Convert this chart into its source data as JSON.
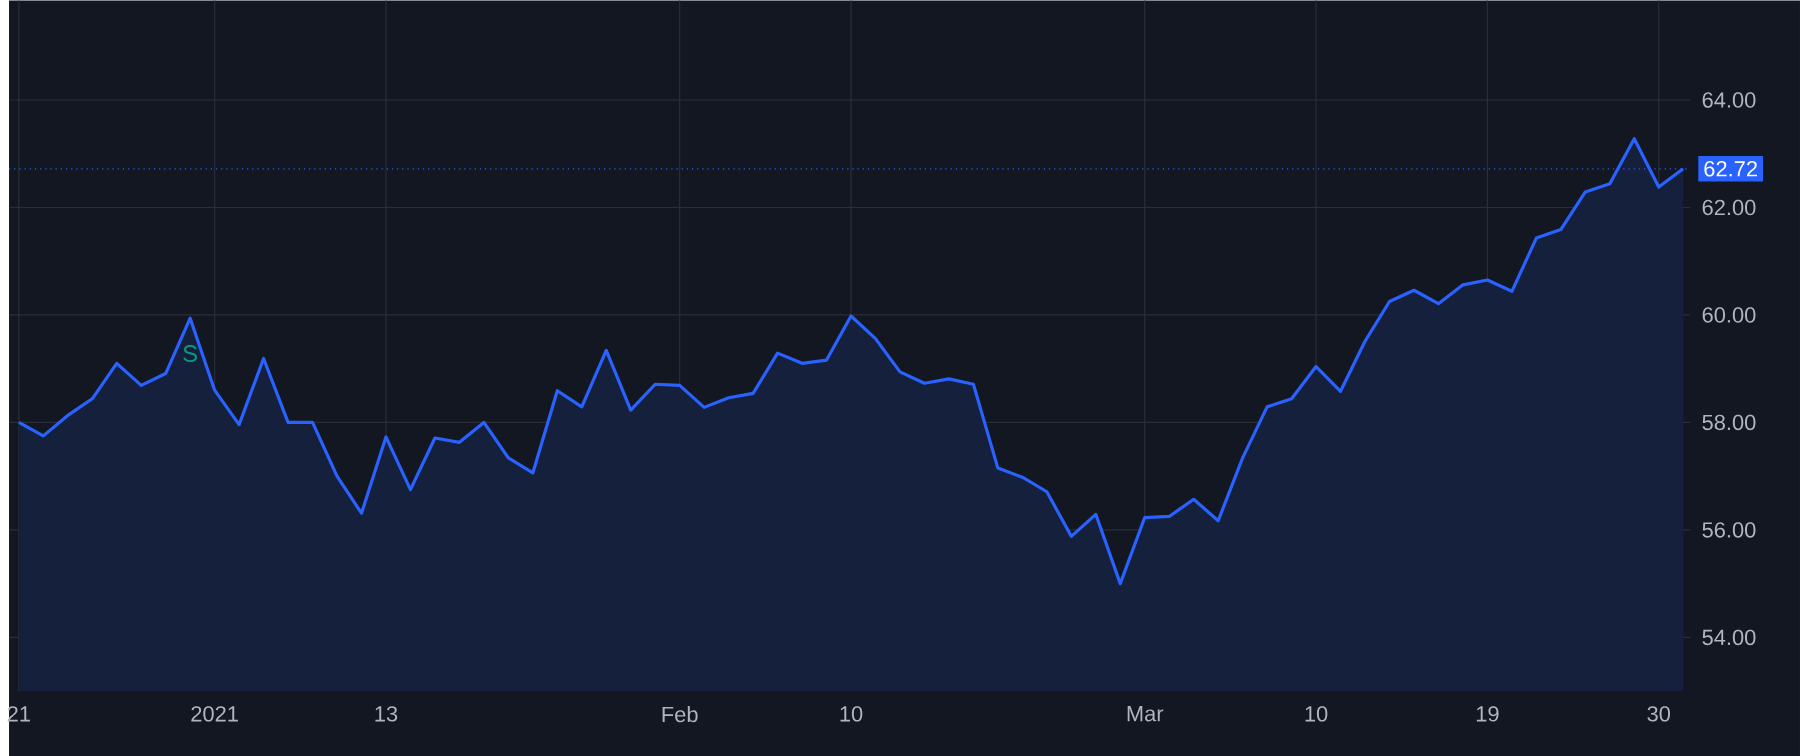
{
  "chart_data": {
    "type": "area",
    "categories": [
      "21",
      null,
      null,
      null,
      null,
      null,
      null,
      null,
      "2021",
      null,
      null,
      null,
      null,
      null,
      null,
      "13",
      null,
      null,
      null,
      null,
      null,
      null,
      null,
      null,
      null,
      null,
      null,
      "Feb",
      null,
      null,
      null,
      null,
      null,
      null,
      "10",
      null,
      null,
      null,
      null,
      null,
      null,
      null,
      null,
      null,
      null,
      null,
      "Mar",
      null,
      null,
      null,
      null,
      null,
      null,
      "10",
      null,
      null,
      null,
      null,
      null,
      null,
      "19",
      null,
      null,
      null,
      null,
      null,
      null,
      "30",
      null
    ],
    "series": [
      {
        "color": "#2962ff",
        "values": [
          58.0,
          57.75,
          58.13,
          58.44,
          59.1,
          58.69,
          58.91,
          59.94,
          58.6,
          57.96,
          59.19,
          58.0,
          58.0,
          57.0,
          56.31,
          57.73,
          56.75,
          57.71,
          57.63,
          58.0,
          57.34,
          57.06,
          58.59,
          58.29,
          59.34,
          58.23,
          58.71,
          58.69,
          58.28,
          58.46,
          58.54,
          59.29,
          59.1,
          59.16,
          59.98,
          59.56,
          58.94,
          58.73,
          58.81,
          58.71,
          57.15,
          56.98,
          56.71,
          55.88,
          56.29,
          55.0,
          56.23,
          56.25,
          56.57,
          56.17,
          57.34,
          58.29,
          58.44,
          59.04,
          58.58,
          59.51,
          60.25,
          60.46,
          60.21,
          60.56,
          60.65,
          60.44,
          61.43,
          61.59,
          62.29,
          62.44,
          63.28,
          62.38,
          62.72
        ]
      }
    ],
    "ylim": [
      53,
      65.85
    ],
    "yticks": [
      {
        "value": 54,
        "label": "54.00"
      },
      {
        "value": 56,
        "label": "56.00"
      },
      {
        "value": 58,
        "label": "58.00"
      },
      {
        "value": 60,
        "label": "60.00"
      },
      {
        "value": 62,
        "label": "62.00"
      },
      {
        "value": 64,
        "label": "64.00"
      }
    ],
    "grid": true,
    "ref_lines": [
      {
        "axis": "y",
        "value": 62.72,
        "label": "62.72",
        "color": "#2962ff",
        "line_style": "dotted"
      }
    ],
    "annotations": [
      {
        "text": "S",
        "y": 59.94
      }
    ]
  }
}
